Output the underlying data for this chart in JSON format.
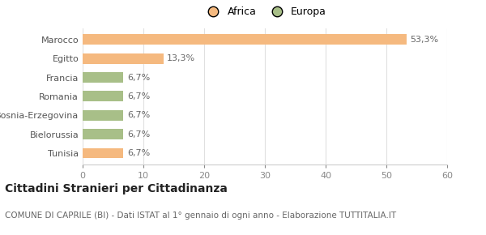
{
  "categories": [
    "Tunisia",
    "Bielorussia",
    "Bosnia-Erzegovina",
    "Romania",
    "Francia",
    "Egitto",
    "Marocco"
  ],
  "values": [
    6.7,
    6.7,
    6.7,
    6.7,
    6.7,
    13.3,
    53.3
  ],
  "labels": [
    "6,7%",
    "6,7%",
    "6,7%",
    "6,7%",
    "6,7%",
    "13,3%",
    "53,3%"
  ],
  "colors": [
    "#f5b97f",
    "#a8bf88",
    "#a8bf88",
    "#a8bf88",
    "#a8bf88",
    "#f5b97f",
    "#f5b97f"
  ],
  "legend": [
    {
      "label": "Africa",
      "color": "#f5b97f"
    },
    {
      "label": "Europa",
      "color": "#a8bf88"
    }
  ],
  "xlim": [
    0,
    60
  ],
  "xticks": [
    0,
    10,
    20,
    30,
    40,
    50,
    60
  ],
  "title": "Cittadini Stranieri per Cittadinanza",
  "subtitle": "COMUNE DI CAPRILE (BI) - Dati ISTAT al 1° gennaio di ogni anno - Elaborazione TUTTITALIA.IT",
  "bg_color": "#ffffff",
  "bar_height": 0.55,
  "label_fontsize": 8,
  "title_fontsize": 10,
  "subtitle_fontsize": 7.5,
  "tick_fontsize": 8,
  "ytick_fontsize": 8
}
